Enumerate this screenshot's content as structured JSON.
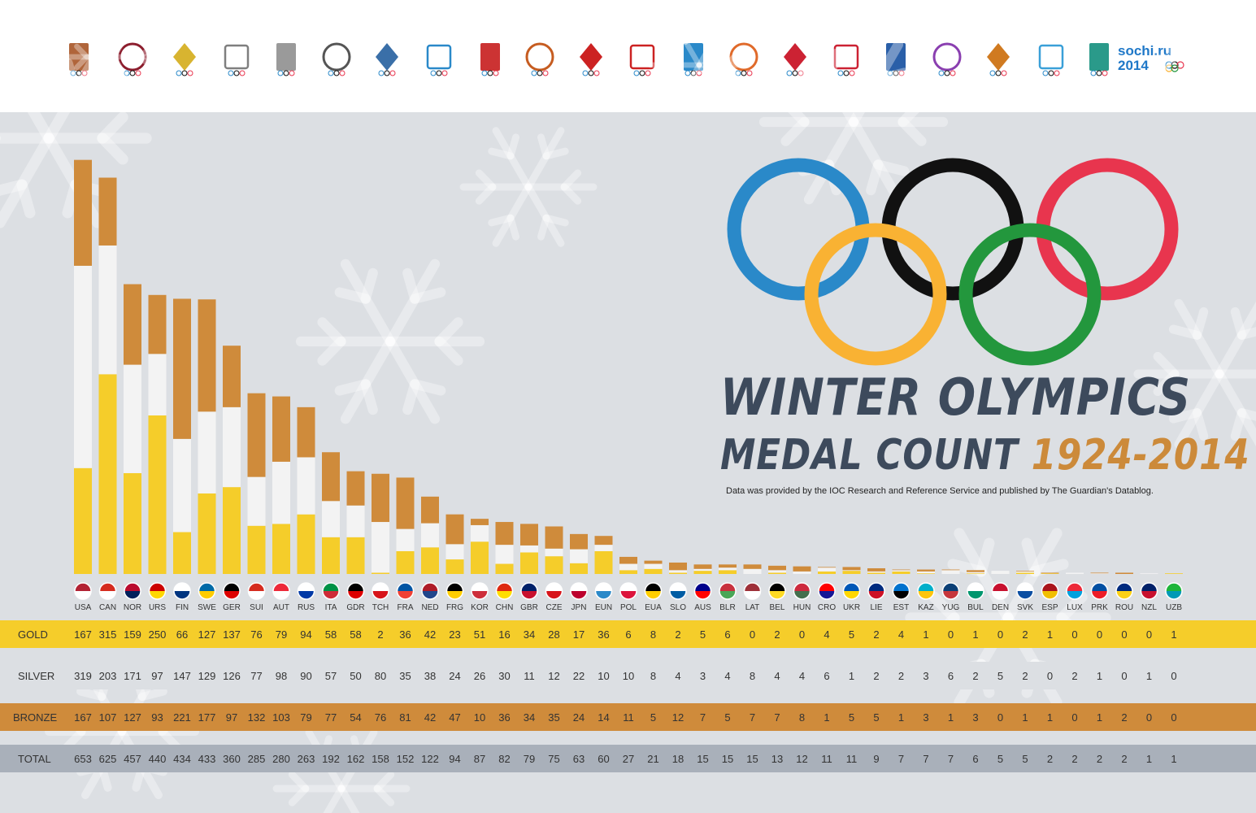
{
  "title_line1": "WINTER OLYMPICS",
  "title_line2": "MEDAL COUNT",
  "title_years": "1924-2014",
  "subtitle": "Data was provided by the IOC Research and Reference Service and published by The Guardian's Datablog.",
  "sochi_logo": {
    "line1": "sochi.ru",
    "line2": "2014"
  },
  "colors": {
    "gold": "#f5cd2a",
    "silver": "#f3f3f3",
    "bronze": "#cf8b3b",
    "total_row": "#a9b0ba",
    "panel": "#dcdfe3",
    "ring_blue": "#2a89c9",
    "ring_yellow": "#f9b233",
    "ring_black": "#111111",
    "ring_green": "#23973d",
    "ring_red": "#e8354e",
    "title": "#3d4a5c",
    "years": "#cc8a3a"
  },
  "chart_data": {
    "type": "bar",
    "stacked": true,
    "categories": [
      "USA",
      "CAN",
      "NOR",
      "URS",
      "FIN",
      "SWE",
      "GER",
      "SUI",
      "AUT",
      "RUS",
      "ITA",
      "GDR",
      "TCH",
      "FRA",
      "NED",
      "FRG",
      "KOR",
      "CHN",
      "GBR",
      "CZE",
      "JPN",
      "EUN",
      "POL",
      "EUA",
      "SLO",
      "AUS",
      "BLR",
      "LAT",
      "BEL",
      "HUN",
      "CRO",
      "UKR",
      "LIE",
      "EST",
      "KAZ",
      "YUG",
      "BUL",
      "DEN",
      "SVK",
      "ESP",
      "LUX",
      "PRK",
      "ROU",
      "NZL",
      "UZB"
    ],
    "series": [
      {
        "name": "GOLD",
        "values": [
          167,
          315,
          159,
          250,
          66,
          127,
          137,
          76,
          79,
          94,
          58,
          58,
          2,
          36,
          42,
          23,
          51,
          16,
          34,
          28,
          17,
          36,
          6,
          8,
          2,
          5,
          6,
          0,
          2,
          0,
          4,
          5,
          2,
          4,
          1,
          0,
          1,
          0,
          2,
          1,
          0,
          0,
          0,
          0,
          1
        ]
      },
      {
        "name": "SILVER",
        "values": [
          319,
          203,
          171,
          97,
          147,
          129,
          126,
          77,
          98,
          90,
          57,
          50,
          80,
          35,
          38,
          24,
          26,
          30,
          11,
          12,
          22,
          10,
          10,
          8,
          4,
          3,
          4,
          8,
          4,
          4,
          6,
          1,
          2,
          2,
          3,
          6,
          2,
          5,
          2,
          0,
          2,
          1,
          0,
          1,
          0
        ]
      },
      {
        "name": "BRONZE",
        "values": [
          167,
          107,
          127,
          93,
          221,
          177,
          97,
          132,
          103,
          79,
          77,
          54,
          76,
          81,
          42,
          47,
          10,
          36,
          34,
          35,
          24,
          14,
          11,
          5,
          12,
          7,
          5,
          7,
          7,
          8,
          1,
          5,
          5,
          1,
          3,
          1,
          3,
          0,
          1,
          1,
          0,
          1,
          2,
          0,
          0
        ]
      },
      {
        "name": "TOTAL",
        "values": [
          653,
          625,
          457,
          440,
          434,
          433,
          360,
          285,
          280,
          263,
          192,
          162,
          158,
          152,
          122,
          94,
          87,
          82,
          79,
          75,
          63,
          60,
          27,
          21,
          18,
          15,
          15,
          15,
          13,
          12,
          11,
          11,
          9,
          7,
          7,
          7,
          6,
          5,
          5,
          2,
          2,
          2,
          2,
          1,
          1
        ]
      }
    ]
  },
  "flag_icons": [
    "usa-flag-icon",
    "canada-flag-icon",
    "norway-flag-icon",
    "ussr-flag-icon",
    "finland-flag-icon",
    "sweden-flag-icon",
    "germany-flag-icon",
    "switzerland-flag-icon",
    "austria-flag-icon",
    "russia-flag-icon",
    "italy-flag-icon",
    "gdr-flag-icon",
    "czechoslovakia-flag-icon",
    "france-flag-icon",
    "netherlands-flag-icon",
    "frg-flag-icon",
    "korea-flag-icon",
    "china-flag-icon",
    "uk-flag-icon",
    "czech-flag-icon",
    "japan-flag-icon",
    "olympic-rings-flag-icon",
    "poland-flag-icon",
    "eua-flag-icon",
    "slovenia-flag-icon",
    "australia-flag-icon",
    "belarus-flag-icon",
    "latvia-flag-icon",
    "belgium-flag-icon",
    "hungary-flag-icon",
    "croatia-flag-icon",
    "ukraine-flag-icon",
    "liechtenstein-flag-icon",
    "estonia-flag-icon",
    "kazakhstan-flag-icon",
    "yugoslavia-flag-icon",
    "bulgaria-flag-icon",
    "denmark-flag-icon",
    "slovakia-flag-icon",
    "spain-flag-icon",
    "luxembourg-flag-icon",
    "north-korea-flag-icon",
    "romania-flag-icon",
    "new-zealand-flag-icon",
    "uzbekistan-flag-icon"
  ]
}
